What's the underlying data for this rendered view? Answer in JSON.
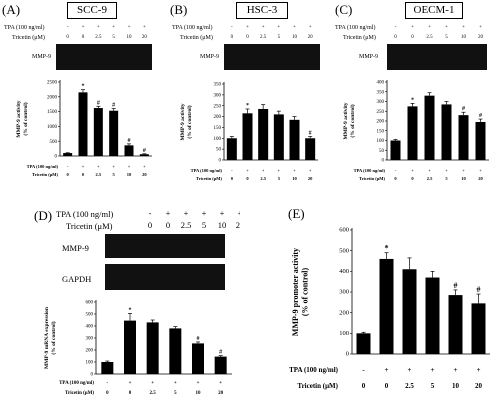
{
  "panels": {
    "A": {
      "label": "(A)",
      "cell": "SCC-9",
      "tpa_label": "TPA (100 ng/ml)",
      "tricetin_label": "Tricetin (μM)",
      "tpa": [
        "-",
        "+",
        "+",
        "+",
        "+",
        "+"
      ],
      "tricetin": [
        "0",
        "0",
        "2.5",
        "5",
        "10",
        "20"
      ],
      "blot_label": "MMP-9",
      "ylabel": "MMP-9 activity\n(% of control)",
      "xaxis_tpa_label": "TPA (100 ng/ml)",
      "xaxis_tricetin_label": "Tricetin (μM)",
      "bottom_tpa": [
        "-",
        "+",
        "+",
        "+",
        "+",
        "+"
      ],
      "bottom_tricetin": [
        "0",
        "0",
        "2.5",
        "5",
        "10",
        "20"
      ]
    },
    "B": {
      "label": "(B)",
      "cell": "HSC-3",
      "tpa_label": "TPA (100 ng/ml)",
      "tricetin_label": "Tricetin (μM)",
      "tpa": [
        "-",
        "+",
        "+",
        "+",
        "+",
        "+"
      ],
      "tricetin": [
        "0",
        "0",
        "2.5",
        "5",
        "10",
        "20"
      ],
      "blot_label": "MMP-9",
      "ylabel": "MMP-9 activity\n(% of control)",
      "xaxis_tpa_label": "TPA (100 ng/ml)",
      "xaxis_tricetin_label": "Tricetin (μM)",
      "bottom_tpa": [
        "-",
        "+",
        "+",
        "+",
        "+",
        "+"
      ],
      "bottom_tricetin": [
        "0",
        "0",
        "2.5",
        "5",
        "10",
        "20"
      ]
    },
    "C": {
      "label": "(C)",
      "cell": "OECM-1",
      "tpa_label": "TPA (100 ng/ml)",
      "tricetin_label": "Tricetin (μM)",
      "tpa": [
        "-",
        "+",
        "+",
        "+",
        "+",
        "+"
      ],
      "tricetin": [
        "0",
        "0",
        "2.5",
        "5",
        "10",
        "20"
      ],
      "blot_label": "MMP-9",
      "ylabel": "MMP-9 activity\n(% of control)",
      "xaxis_tpa_label": "TPA (100 ng/ml)",
      "xaxis_tricetin_label": "Tricetin (μM)",
      "bottom_tpa": [
        "-",
        "+",
        "+",
        "+",
        "+",
        "+"
      ],
      "bottom_tricetin": [
        "0",
        "0",
        "2.5",
        "5",
        "10",
        "20"
      ]
    },
    "D": {
      "label": "(D)",
      "tpa_label": "TPA (100 ng/ml)",
      "tricetin_label": "Tricetin (μM)",
      "tpa": [
        "-",
        "+",
        "+",
        "+",
        "+",
        "+"
      ],
      "tricetin": [
        "0",
        "0",
        "2.5",
        "5",
        "10",
        "20"
      ],
      "blot_label_1": "MMP-9",
      "blot_label_2": "GAPDH",
      "ylabel": "MMP-9 mRNA expression\n(% of control)",
      "xaxis_tpa_label": "TPA (100 ng/ml)",
      "xaxis_tricetin_label": "Tricetin (μM)",
      "bottom_tpa": [
        "-",
        "+",
        "+",
        "+",
        "+",
        "+"
      ],
      "bottom_tricetin": [
        "0",
        "0",
        "2.5",
        "5",
        "10",
        "20"
      ]
    },
    "E": {
      "label": "(E)",
      "ylabel": "MMP-9 promoter activity\n(% of control)",
      "xaxis_tpa_label": "TPA (100 ng/ml)",
      "xaxis_tricetin_label": "Tricetin (μM)",
      "bottom_tpa": [
        "-",
        "+",
        "+",
        "+",
        "+",
        "+"
      ],
      "bottom_tricetin": [
        "0",
        "0",
        "2.5",
        "5",
        "10",
        "20"
      ]
    }
  },
  "chart_data": [
    {
      "id": "A",
      "type": "bar",
      "categories": [
        "0",
        "0",
        "2.5",
        "5",
        "10",
        "20"
      ],
      "values": [
        100,
        2150,
        1620,
        1530,
        360,
        60
      ],
      "errors": [
        10,
        90,
        60,
        70,
        50,
        15
      ],
      "sig": [
        "",
        "*",
        "#",
        "#",
        "#",
        "#"
      ],
      "ylim": [
        0,
        2500
      ],
      "yticks": [
        0,
        500,
        1000,
        1500,
        2000,
        2500
      ]
    },
    {
      "id": "B",
      "type": "bar",
      "categories": [
        "0",
        "0",
        "2.5",
        "5",
        "10",
        "20"
      ],
      "values": [
        100,
        215,
        235,
        210,
        185,
        100
      ],
      "errors": [
        8,
        20,
        20,
        15,
        15,
        8
      ],
      "sig": [
        "",
        "*",
        "",
        "",
        "",
        "#"
      ],
      "ylim": [
        0,
        350
      ],
      "yticks": [
        0,
        50,
        100,
        150,
        200,
        250,
        300,
        350
      ]
    },
    {
      "id": "C",
      "type": "bar",
      "categories": [
        "0",
        "0",
        "2.5",
        "5",
        "10",
        "20"
      ],
      "values": [
        100,
        275,
        330,
        285,
        230,
        195
      ],
      "errors": [
        5,
        15,
        15,
        15,
        15,
        15
      ],
      "sig": [
        "",
        "*",
        "",
        "",
        "#",
        "#"
      ],
      "ylim": [
        0,
        400
      ],
      "yticks": [
        0,
        50,
        100,
        150,
        200,
        250,
        300,
        350,
        400
      ]
    },
    {
      "id": "D",
      "type": "bar",
      "categories": [
        "0",
        "0",
        "2.5",
        "5",
        "10",
        "20"
      ],
      "values": [
        100,
        445,
        430,
        380,
        255,
        145
      ],
      "errors": [
        8,
        60,
        20,
        15,
        12,
        8
      ],
      "sig": [
        "",
        "*",
        "",
        "",
        "#",
        "#"
      ],
      "ylim": [
        0,
        600
      ],
      "yticks": [
        0,
        100,
        200,
        300,
        400,
        500,
        600
      ]
    },
    {
      "id": "E",
      "type": "bar",
      "categories": [
        "0",
        "0",
        "2.5",
        "5",
        "10",
        "20"
      ],
      "values": [
        100,
        460,
        410,
        370,
        285,
        245
      ],
      "errors": [
        5,
        30,
        55,
        30,
        25,
        45
      ],
      "sig": [
        "",
        "*",
        "",
        "",
        "#",
        "#"
      ],
      "ylim": [
        0,
        600
      ],
      "yticks": [
        0,
        100,
        200,
        300,
        400,
        500,
        600
      ]
    }
  ]
}
